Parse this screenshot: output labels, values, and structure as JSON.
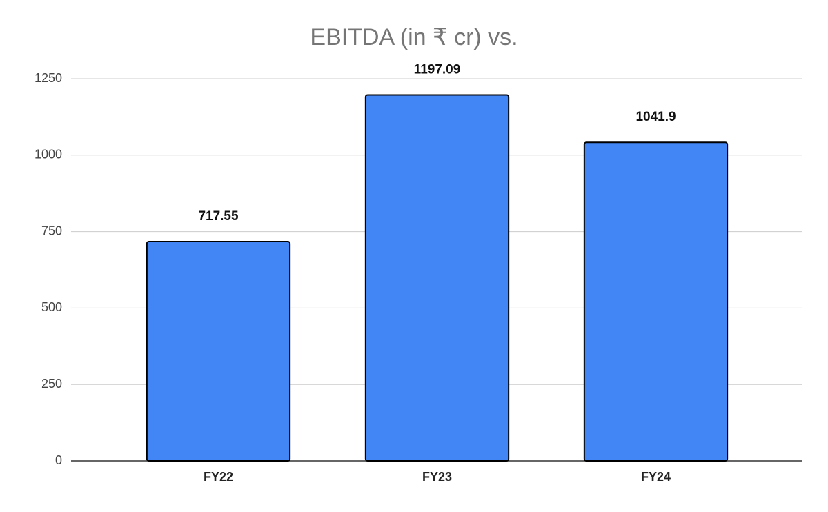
{
  "chart_data": {
    "type": "bar",
    "title": "EBITDA (in ₹ cr) vs.",
    "categories": [
      "FY22",
      "FY23",
      "FY24"
    ],
    "values": [
      717.55,
      1197.09,
      1041.9
    ],
    "color": "#4285f4",
    "ylim": [
      0,
      1250
    ],
    "yticks": [
      0,
      250,
      500,
      750,
      1000,
      1250
    ],
    "grid": true
  }
}
